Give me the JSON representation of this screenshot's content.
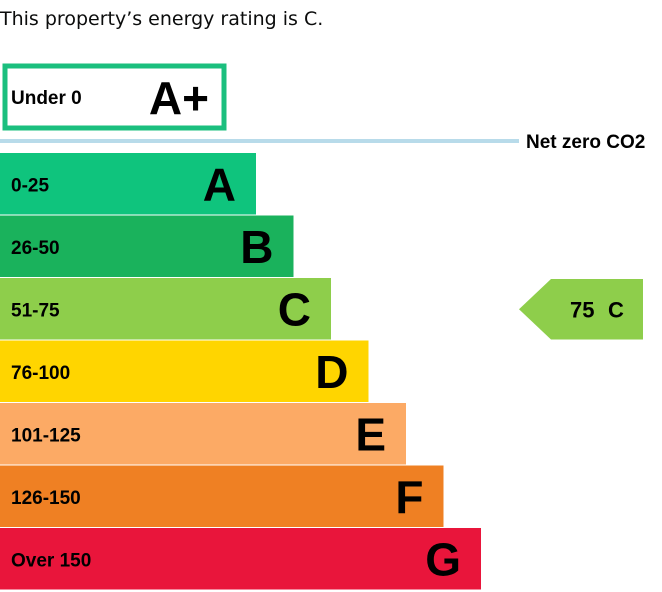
{
  "intro_text": "This property’s energy rating is C.",
  "chart_data": {
    "type": "bar",
    "orientation": "horizontal",
    "top_band": {
      "range": "Under 0",
      "letter": "A+",
      "border_color": "#1bbf7e"
    },
    "net_zero_label": "Net zero CO2",
    "net_zero_line_color": "#b8dbea",
    "bands": [
      {
        "range": "0-25",
        "letter": "A",
        "color": "#0fc47d"
      },
      {
        "range": "26-50",
        "letter": "B",
        "color": "#1ab25c"
      },
      {
        "range": "51-75",
        "letter": "C",
        "color": "#8ece4b"
      },
      {
        "range": "76-100",
        "letter": "D",
        "color": "#ffd500"
      },
      {
        "range": "101-125",
        "letter": "E",
        "color": "#fcaa65"
      },
      {
        "range": "126-150",
        "letter": "F",
        "color": "#ef8023"
      },
      {
        "range": "Over 150",
        "letter": "G",
        "color": "#e9153b"
      }
    ],
    "current_rating": {
      "score": "75",
      "letter": "C",
      "band_index": 2,
      "color": "#8ece4b"
    }
  }
}
